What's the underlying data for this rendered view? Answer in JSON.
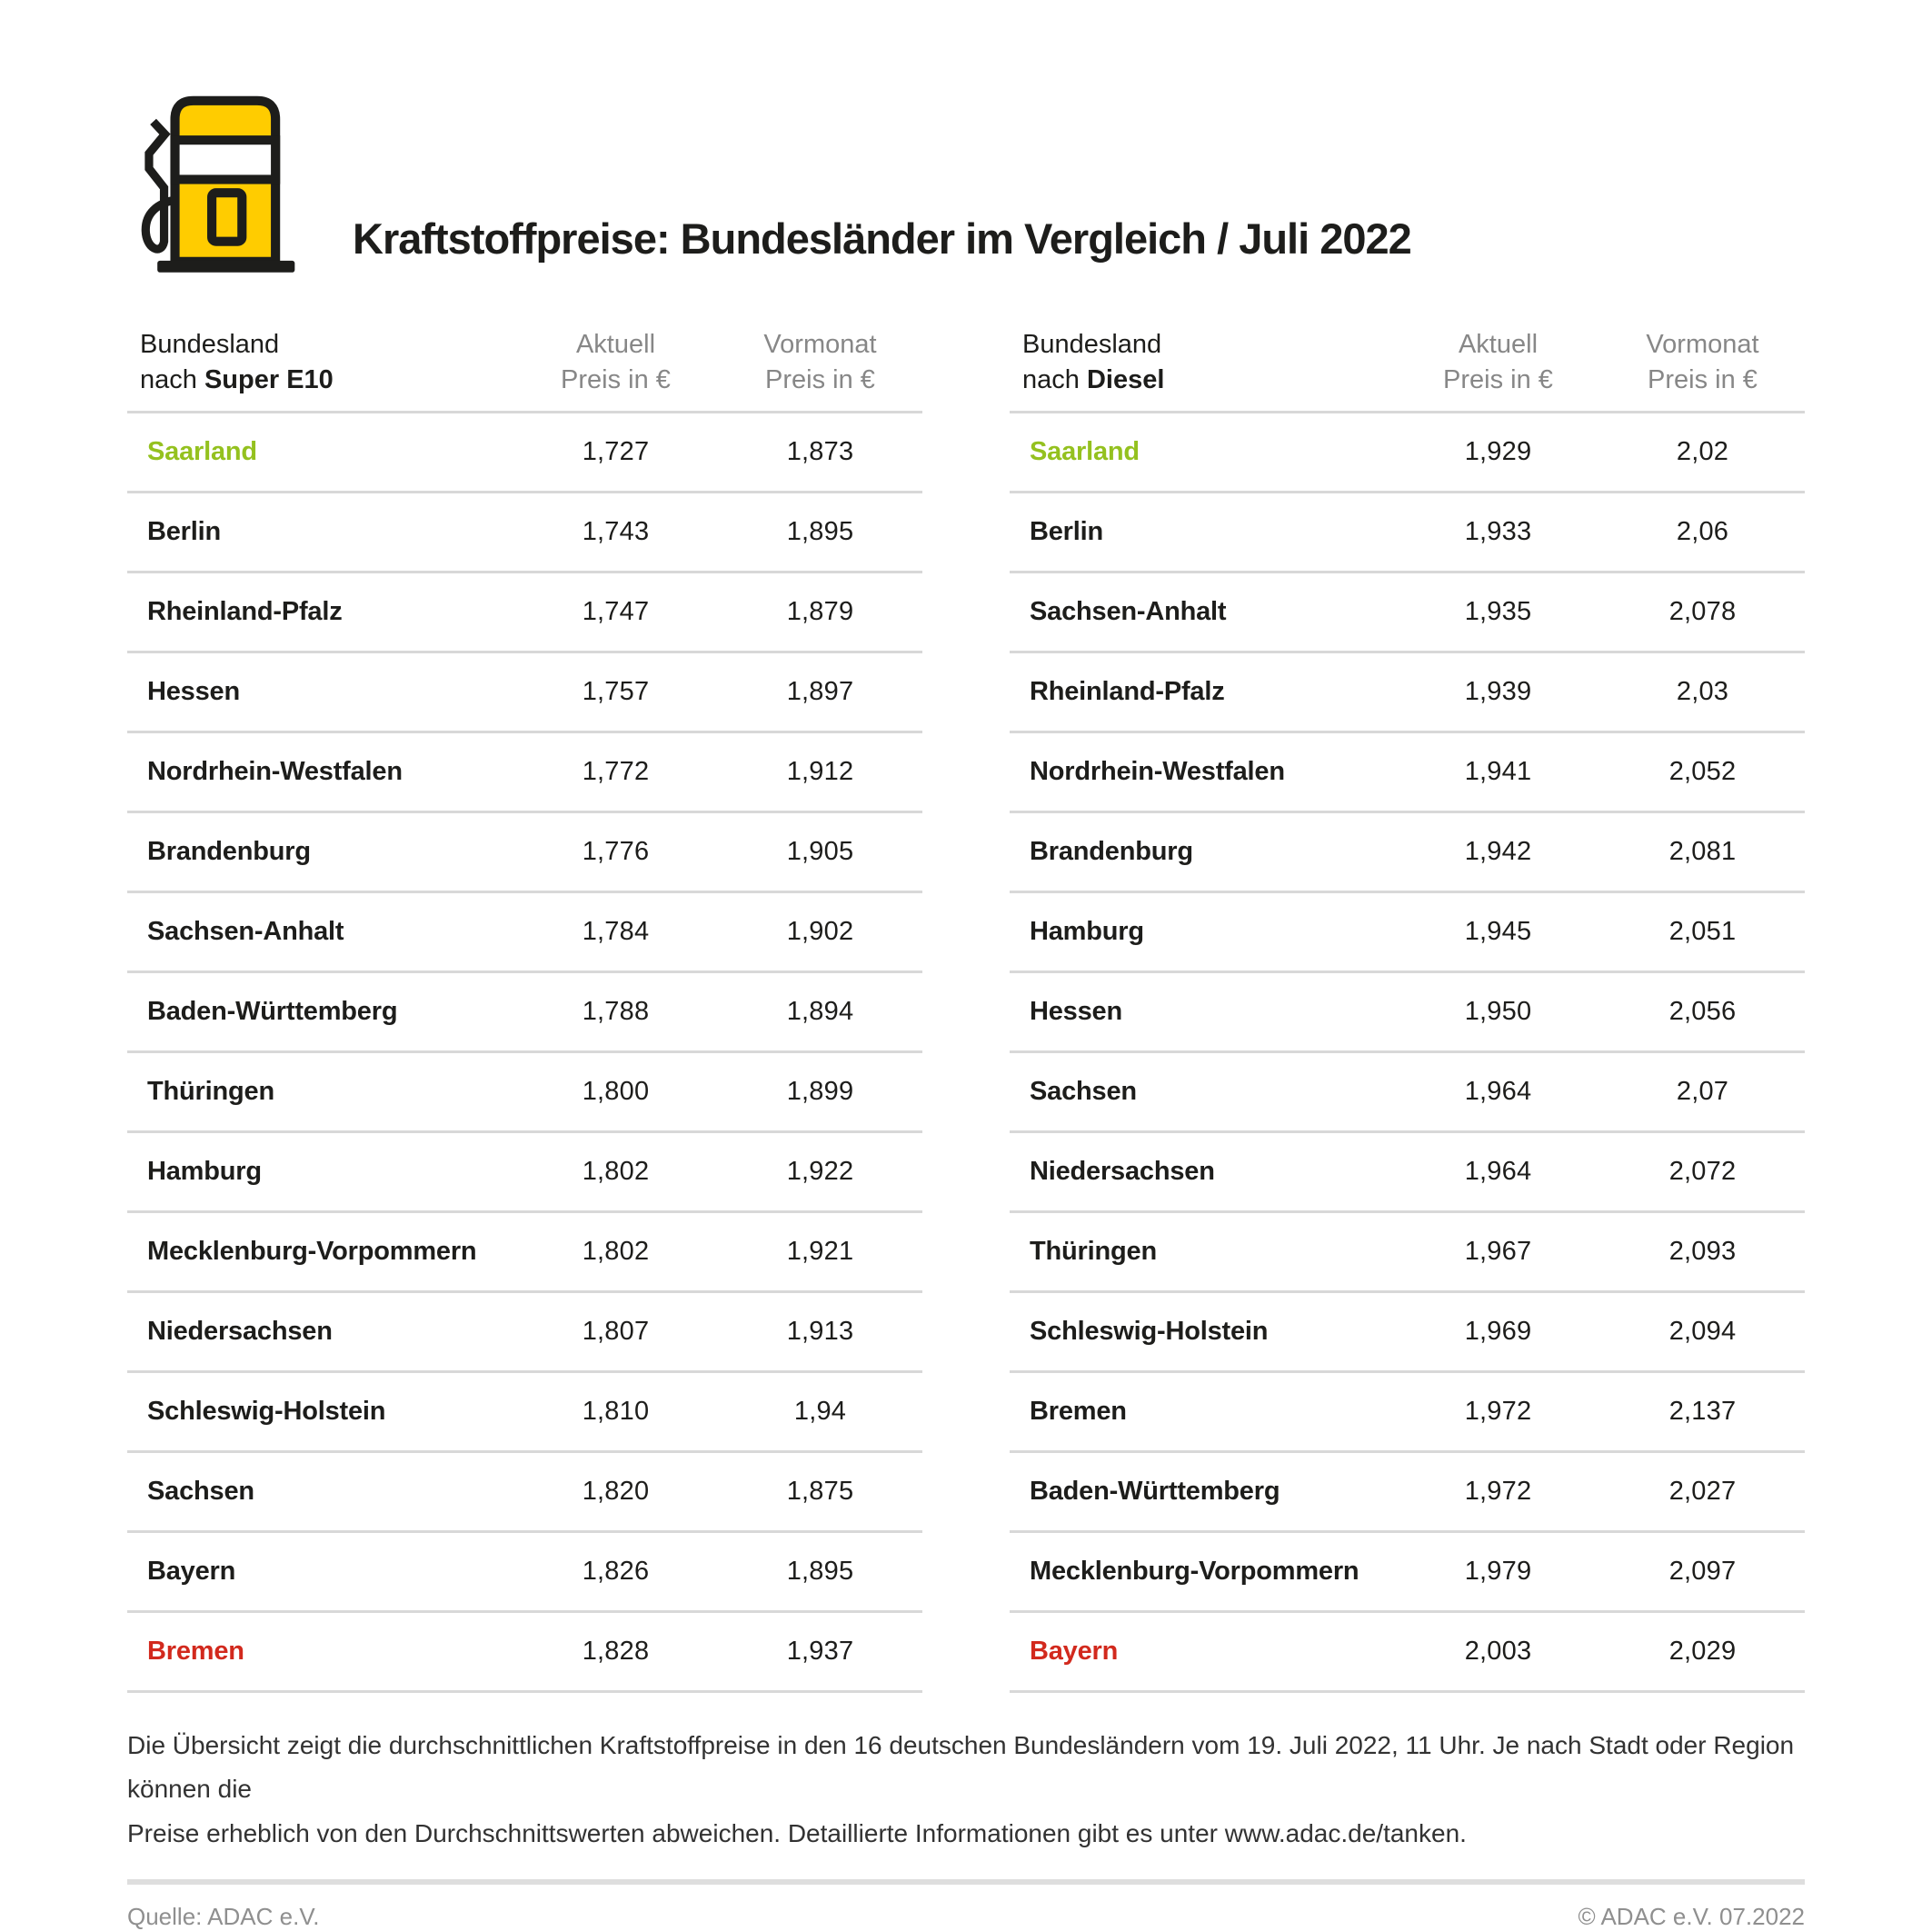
{
  "header": {
    "title": "Kraftstoffpreise: Bundesländer im Vergleich / Juli 2022",
    "icon": "fuel-pump-icon"
  },
  "columns": {
    "aktuell": "Aktuell",
    "vormonat": "Vormonat",
    "price_unit": "Preis in €"
  },
  "tables": [
    {
      "label_line1": "Bundesland",
      "label_prefix": "nach ",
      "fuel": "Super E10",
      "rows": [
        {
          "name": "Saarland",
          "aktuell": "1,727",
          "vormonat": "1,873",
          "highlight": "green"
        },
        {
          "name": "Berlin",
          "aktuell": "1,743",
          "vormonat": "1,895",
          "highlight": null
        },
        {
          "name": "Rheinland-Pfalz",
          "aktuell": "1,747",
          "vormonat": "1,879",
          "highlight": null
        },
        {
          "name": "Hessen",
          "aktuell": "1,757",
          "vormonat": "1,897",
          "highlight": null
        },
        {
          "name": "Nordrhein-Westfalen",
          "aktuell": "1,772",
          "vormonat": "1,912",
          "highlight": null
        },
        {
          "name": "Brandenburg",
          "aktuell": "1,776",
          "vormonat": "1,905",
          "highlight": null
        },
        {
          "name": "Sachsen-Anhalt",
          "aktuell": "1,784",
          "vormonat": "1,902",
          "highlight": null
        },
        {
          "name": "Baden-Württemberg",
          "aktuell": "1,788",
          "vormonat": "1,894",
          "highlight": null
        },
        {
          "name": "Thüringen",
          "aktuell": "1,800",
          "vormonat": "1,899",
          "highlight": null
        },
        {
          "name": "Hamburg",
          "aktuell": "1,802",
          "vormonat": "1,922",
          "highlight": null
        },
        {
          "name": "Mecklenburg-Vorpommern",
          "aktuell": "1,802",
          "vormonat": "1,921",
          "highlight": null
        },
        {
          "name": "Niedersachsen",
          "aktuell": "1,807",
          "vormonat": "1,913",
          "highlight": null
        },
        {
          "name": "Schleswig-Holstein",
          "aktuell": "1,810",
          "vormonat": "1,94",
          "highlight": null
        },
        {
          "name": "Sachsen",
          "aktuell": "1,820",
          "vormonat": "1,875",
          "highlight": null
        },
        {
          "name": "Bayern",
          "aktuell": "1,826",
          "vormonat": "1,895",
          "highlight": null
        },
        {
          "name": "Bremen",
          "aktuell": "1,828",
          "vormonat": "1,937",
          "highlight": "red"
        }
      ]
    },
    {
      "label_line1": "Bundesland",
      "label_prefix": "nach ",
      "fuel": "Diesel",
      "rows": [
        {
          "name": "Saarland",
          "aktuell": "1,929",
          "vormonat": "2,02",
          "highlight": "green"
        },
        {
          "name": "Berlin",
          "aktuell": "1,933",
          "vormonat": "2,06",
          "highlight": null
        },
        {
          "name": "Sachsen-Anhalt",
          "aktuell": "1,935",
          "vormonat": "2,078",
          "highlight": null
        },
        {
          "name": "Rheinland-Pfalz",
          "aktuell": "1,939",
          "vormonat": "2,03",
          "highlight": null
        },
        {
          "name": "Nordrhein-Westfalen",
          "aktuell": "1,941",
          "vormonat": "2,052",
          "highlight": null
        },
        {
          "name": "Brandenburg",
          "aktuell": "1,942",
          "vormonat": "2,081",
          "highlight": null
        },
        {
          "name": "Hamburg",
          "aktuell": "1,945",
          "vormonat": "2,051",
          "highlight": null
        },
        {
          "name": "Hessen",
          "aktuell": "1,950",
          "vormonat": "2,056",
          "highlight": null
        },
        {
          "name": "Sachsen",
          "aktuell": "1,964",
          "vormonat": "2,07",
          "highlight": null
        },
        {
          "name": "Niedersachsen",
          "aktuell": "1,964",
          "vormonat": "2,072",
          "highlight": null
        },
        {
          "name": "Thüringen",
          "aktuell": "1,967",
          "vormonat": "2,093",
          "highlight": null
        },
        {
          "name": "Schleswig-Holstein",
          "aktuell": "1,969",
          "vormonat": "2,094",
          "highlight": null
        },
        {
          "name": "Bremen",
          "aktuell": "1,972",
          "vormonat": "2,137",
          "highlight": null
        },
        {
          "name": "Baden-Württemberg",
          "aktuell": "1,972",
          "vormonat": "2,027",
          "highlight": null
        },
        {
          "name": "Mecklenburg-Vorpommern",
          "aktuell": "1,979",
          "vormonat": "2,097",
          "highlight": null
        },
        {
          "name": "Bayern",
          "aktuell": "2,003",
          "vormonat": "2,029",
          "highlight": "red"
        }
      ]
    }
  ],
  "footnote": {
    "line1": "Die Übersicht zeigt die durchschnittlichen Kraftstoffpreise in den 16 deutschen Bundesländern vom 19. Juli 2022, 11 Uhr. Je nach Stadt oder Region können die",
    "line2": "Preise erheblich von den Durchschnittswerten abweichen. Detaillierte Informationen gibt es unter www.adac.de/tanken."
  },
  "footer": {
    "source": "Quelle: ADAC e.V.",
    "copyright": "© ADAC e.V. 07.2022"
  },
  "colors": {
    "yellow": "#FFCC00",
    "green": "#94C11F",
    "red": "#D2291D",
    "header_gray": "#878787"
  }
}
